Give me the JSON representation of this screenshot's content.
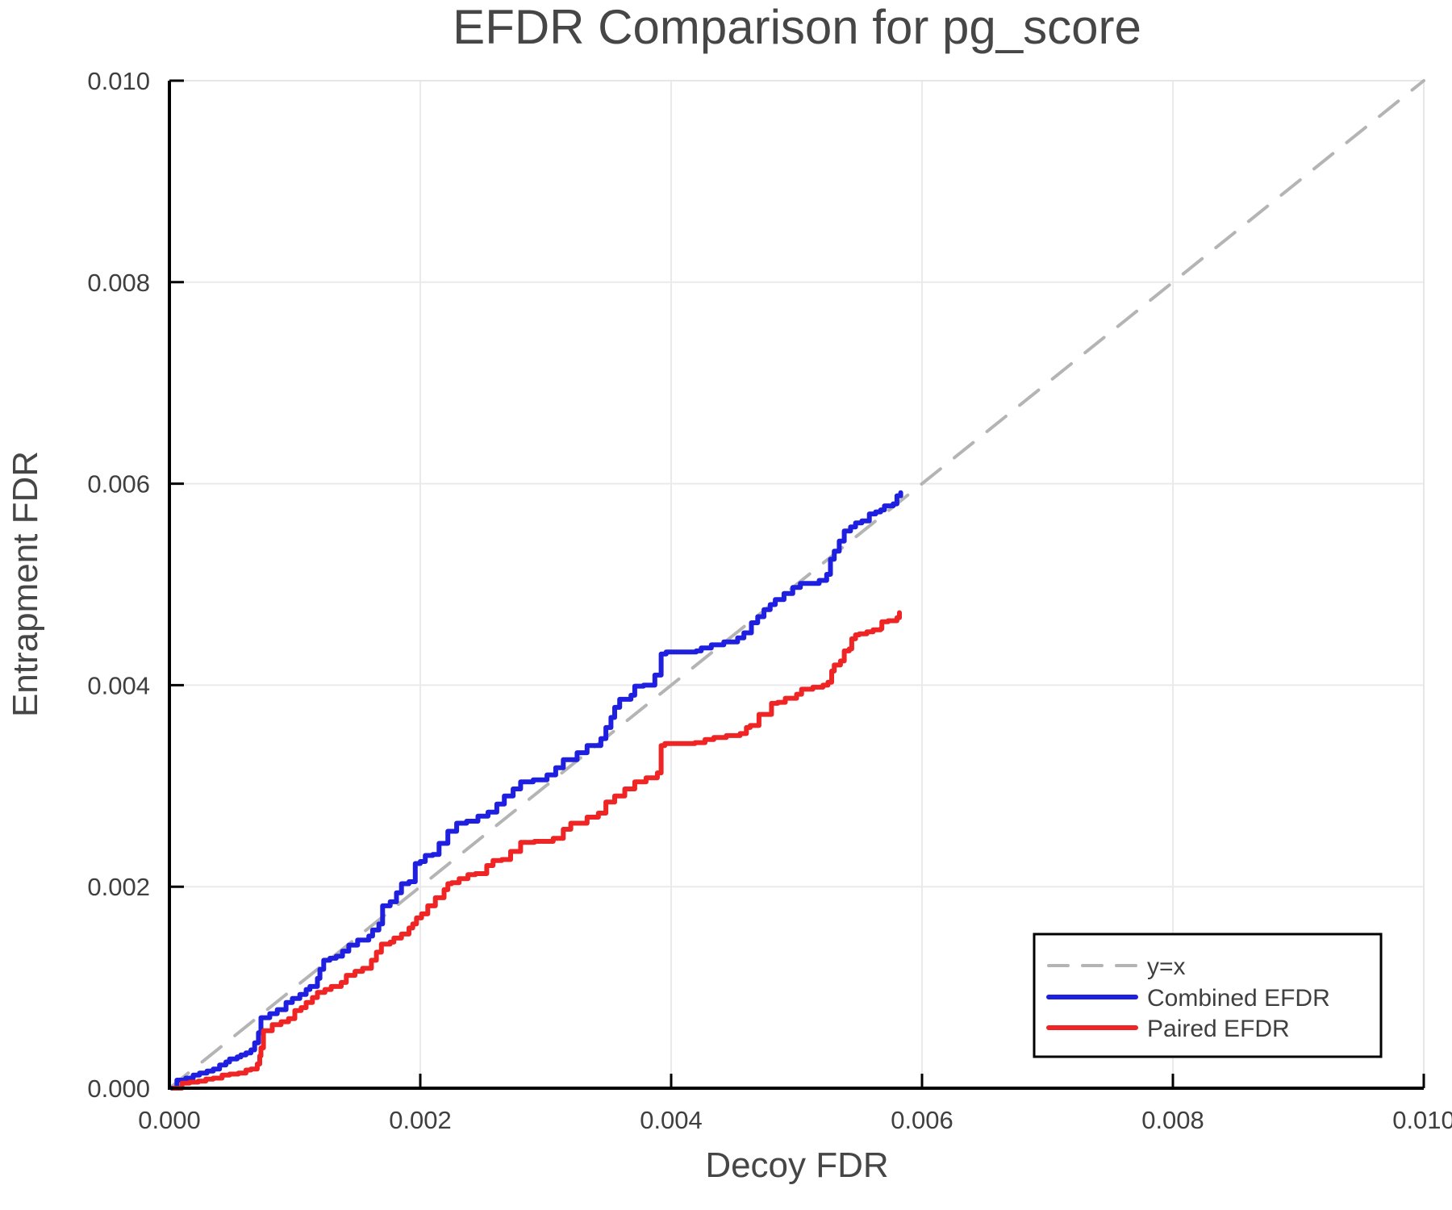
{
  "chart_data": {
    "type": "line",
    "title": "EFDR Comparison for pg_score",
    "xlabel": "Decoy FDR",
    "ylabel": "Entrapment FDR",
    "xlim": [
      0.0,
      0.01
    ],
    "ylim": [
      0.0,
      0.01
    ],
    "xtick_values": [
      0.0,
      0.002,
      0.004,
      0.006,
      0.008,
      0.01
    ],
    "xtick_labels": [
      "0.000",
      "0.002",
      "0.004",
      "0.006",
      "0.008",
      "0.010"
    ],
    "ytick_values": [
      0.0,
      0.002,
      0.004,
      0.006,
      0.008,
      0.01
    ],
    "ytick_labels": [
      "0.000",
      "0.002",
      "0.004",
      "0.006",
      "0.008",
      "0.010"
    ],
    "grid": true,
    "legend": {
      "position": "lower-right",
      "entries": [
        "y=x",
        "Combined EFDR",
        "Paired EFDR"
      ]
    },
    "colors": {
      "background": "#ffffff",
      "title_text": "#464646",
      "tick_text": "#3f3f3f",
      "spine": "#000000",
      "grid": "#eaeaea",
      "frame": "#e6e6e6",
      "legend_border": "#000000",
      "identity_line": "#b4b4b4",
      "combined_efdr": "#1f1fe0",
      "paired_efdr": "#ef2424"
    },
    "series": [
      {
        "name": "y=x",
        "color": "#b4b4b4",
        "width": 4,
        "dash": "30 22",
        "legend_dash": "24 18",
        "step": false,
        "points": [
          [
            0.0,
            0.0
          ],
          [
            0.01,
            0.01
          ]
        ]
      },
      {
        "name": "Combined EFDR",
        "color": "#1f1fe0",
        "width": 6,
        "dash": null,
        "legend_dash": null,
        "step": true,
        "points": [
          [
            2e-05,
            0.0
          ],
          [
            6e-05,
            8e-05
          ],
          [
            0.00013,
            0.0001
          ],
          [
            0.00019,
            0.00013
          ],
          [
            0.00024,
            0.00015
          ],
          [
            0.0003,
            0.00017
          ],
          [
            0.00035,
            0.00019
          ],
          [
            0.0004,
            0.00023
          ],
          [
            0.00045,
            0.00026
          ],
          [
            0.00048,
            0.00029
          ],
          [
            0.00054,
            0.00031
          ],
          [
            0.00057,
            0.00033
          ],
          [
            0.00061,
            0.00035
          ],
          [
            0.00065,
            0.00038
          ],
          [
            0.00068,
            0.00045
          ],
          [
            0.00071,
            0.00055
          ],
          [
            0.00073,
            0.0007
          ],
          [
            0.0008,
            0.00074
          ],
          [
            0.00086,
            0.00078
          ],
          [
            0.00093,
            0.00085
          ],
          [
            0.00098,
            0.00089
          ],
          [
            0.00104,
            0.00093
          ],
          [
            0.00109,
            0.00098
          ],
          [
            0.00112,
            0.00101
          ],
          [
            0.00118,
            0.00109
          ],
          [
            0.0012,
            0.00118
          ],
          [
            0.00123,
            0.00127
          ],
          [
            0.00128,
            0.00129
          ],
          [
            0.00133,
            0.00131
          ],
          [
            0.00138,
            0.00136
          ],
          [
            0.00143,
            0.00142
          ],
          [
            0.0015,
            0.00147
          ],
          [
            0.00159,
            0.00151
          ],
          [
            0.00162,
            0.00157
          ],
          [
            0.00167,
            0.00163
          ],
          [
            0.0017,
            0.00181
          ],
          [
            0.00176,
            0.00185
          ],
          [
            0.00181,
            0.00194
          ],
          [
            0.00185,
            0.00203
          ],
          [
            0.00191,
            0.00205
          ],
          [
            0.00196,
            0.00223
          ],
          [
            0.002,
            0.00225
          ],
          [
            0.00204,
            0.00231
          ],
          [
            0.0021,
            0.00232
          ],
          [
            0.00215,
            0.00243
          ],
          [
            0.00222,
            0.00255
          ],
          [
            0.00229,
            0.00263
          ],
          [
            0.00237,
            0.00265
          ],
          [
            0.00246,
            0.0027
          ],
          [
            0.00254,
            0.00274
          ],
          [
            0.00261,
            0.00282
          ],
          [
            0.00267,
            0.0029
          ],
          [
            0.00274,
            0.00297
          ],
          [
            0.0028,
            0.00304
          ],
          [
            0.0029,
            0.00306
          ],
          [
            0.00301,
            0.00311
          ],
          [
            0.00308,
            0.00318
          ],
          [
            0.00314,
            0.00326
          ],
          [
            0.00325,
            0.00333
          ],
          [
            0.00333,
            0.0034
          ],
          [
            0.00344,
            0.00347
          ],
          [
            0.00348,
            0.00358
          ],
          [
            0.00352,
            0.00368
          ],
          [
            0.00355,
            0.00378
          ],
          [
            0.00359,
            0.00386
          ],
          [
            0.00368,
            0.0039
          ],
          [
            0.00371,
            0.00399
          ],
          [
            0.00378,
            0.004
          ],
          [
            0.00387,
            0.0041
          ],
          [
            0.00392,
            0.00431
          ],
          [
            0.00396,
            0.00433
          ],
          [
            0.0042,
            0.00434
          ],
          [
            0.00424,
            0.00437
          ],
          [
            0.00432,
            0.0044
          ],
          [
            0.00442,
            0.00443
          ],
          [
            0.00453,
            0.00447
          ],
          [
            0.00458,
            0.00452
          ],
          [
            0.00464,
            0.00462
          ],
          [
            0.00469,
            0.00468
          ],
          [
            0.00474,
            0.00475
          ],
          [
            0.00479,
            0.0048
          ],
          [
            0.00483,
            0.00485
          ],
          [
            0.0049,
            0.00491
          ],
          [
            0.00497,
            0.00497
          ],
          [
            0.00503,
            0.00501
          ],
          [
            0.00518,
            0.00504
          ],
          [
            0.00524,
            0.0051
          ],
          [
            0.00527,
            0.00525
          ],
          [
            0.0053,
            0.00533
          ],
          [
            0.00534,
            0.00543
          ],
          [
            0.00538,
            0.00553
          ],
          [
            0.00543,
            0.00557
          ],
          [
            0.00547,
            0.00561
          ],
          [
            0.00552,
            0.00563
          ],
          [
            0.00558,
            0.0057
          ],
          [
            0.00563,
            0.00572
          ],
          [
            0.00567,
            0.00574
          ],
          [
            0.0057,
            0.00578
          ],
          [
            0.00577,
            0.0058
          ],
          [
            0.0058,
            0.00588
          ],
          [
            0.00583,
            0.00591
          ]
        ]
      },
      {
        "name": "Paired EFDR",
        "color": "#ef2424",
        "width": 6,
        "dash": null,
        "legend_dash": null,
        "step": true,
        "points": [
          [
            3e-05,
            0.0
          ],
          [
            0.0001,
            5e-05
          ],
          [
            0.00016,
            6e-05
          ],
          [
            0.00023,
            7e-05
          ],
          [
            0.00029,
            9e-05
          ],
          [
            0.00035,
            0.0001
          ],
          [
            0.00042,
            0.00013
          ],
          [
            0.00048,
            0.00014
          ],
          [
            0.00055,
            0.00015
          ],
          [
            0.00061,
            0.00018
          ],
          [
            0.00065,
            0.00019
          ],
          [
            0.0007,
            0.00024
          ],
          [
            0.00072,
            0.00032
          ],
          [
            0.00073,
            0.0004
          ],
          [
            0.00075,
            0.00057
          ],
          [
            0.00082,
            0.00063
          ],
          [
            0.00089,
            0.00066
          ],
          [
            0.00095,
            0.00069
          ],
          [
            0.001,
            0.00077
          ],
          [
            0.00105,
            0.0008
          ],
          [
            0.00109,
            0.00085
          ],
          [
            0.00114,
            0.0009
          ],
          [
            0.00118,
            0.00095
          ],
          [
            0.00124,
            0.00098
          ],
          [
            0.00129,
            0.00101
          ],
          [
            0.00137,
            0.00105
          ],
          [
            0.00141,
            0.00112
          ],
          [
            0.00148,
            0.00116
          ],
          [
            0.00154,
            0.00119
          ],
          [
            0.00161,
            0.00127
          ],
          [
            0.00165,
            0.00135
          ],
          [
            0.00169,
            0.00143
          ],
          [
            0.00176,
            0.00145
          ],
          [
            0.00179,
            0.00149
          ],
          [
            0.00185,
            0.00153
          ],
          [
            0.00191,
            0.00159
          ],
          [
            0.00194,
            0.00163
          ],
          [
            0.00197,
            0.00169
          ],
          [
            0.00201,
            0.00173
          ],
          [
            0.00206,
            0.00181
          ],
          [
            0.00212,
            0.00189
          ],
          [
            0.00219,
            0.00197
          ],
          [
            0.00222,
            0.00203
          ],
          [
            0.00225,
            0.00204
          ],
          [
            0.00231,
            0.00208
          ],
          [
            0.00238,
            0.00212
          ],
          [
            0.00244,
            0.00213
          ],
          [
            0.00253,
            0.00221
          ],
          [
            0.00258,
            0.00226
          ],
          [
            0.00265,
            0.00227
          ],
          [
            0.00272,
            0.00235
          ],
          [
            0.0028,
            0.00244
          ],
          [
            0.00291,
            0.00245
          ],
          [
            0.00306,
            0.00248
          ],
          [
            0.00314,
            0.00257
          ],
          [
            0.0032,
            0.00263
          ],
          [
            0.00333,
            0.00269
          ],
          [
            0.00342,
            0.00273
          ],
          [
            0.00348,
            0.00284
          ],
          [
            0.00355,
            0.0029
          ],
          [
            0.00363,
            0.00297
          ],
          [
            0.00371,
            0.00304
          ],
          [
            0.0038,
            0.00308
          ],
          [
            0.00389,
            0.00313
          ],
          [
            0.00392,
            0.0034
          ],
          [
            0.00395,
            0.00342
          ],
          [
            0.00419,
            0.00343
          ],
          [
            0.00427,
            0.00346
          ],
          [
            0.00434,
            0.00348
          ],
          [
            0.00444,
            0.0035
          ],
          [
            0.00455,
            0.00352
          ],
          [
            0.0046,
            0.00358
          ],
          [
            0.00463,
            0.0036
          ],
          [
            0.0047,
            0.00371
          ],
          [
            0.0048,
            0.00382
          ],
          [
            0.00485,
            0.00383
          ],
          [
            0.00491,
            0.00387
          ],
          [
            0.005,
            0.00391
          ],
          [
            0.00504,
            0.00396
          ],
          [
            0.00513,
            0.00398
          ],
          [
            0.00521,
            0.004
          ],
          [
            0.00525,
            0.00403
          ],
          [
            0.00528,
            0.00414
          ],
          [
            0.0053,
            0.0042
          ],
          [
            0.00535,
            0.00424
          ],
          [
            0.00538,
            0.00434
          ],
          [
            0.00542,
            0.00436
          ],
          [
            0.00544,
            0.00446
          ],
          [
            0.00547,
            0.0045
          ],
          [
            0.0055,
            0.00451
          ],
          [
            0.00556,
            0.00453
          ],
          [
            0.00561,
            0.00455
          ],
          [
            0.00567,
            0.00456
          ],
          [
            0.00568,
            0.00463
          ],
          [
            0.00573,
            0.00464
          ],
          [
            0.0058,
            0.00467
          ],
          [
            0.00582,
            0.00472
          ]
        ]
      }
    ]
  }
}
